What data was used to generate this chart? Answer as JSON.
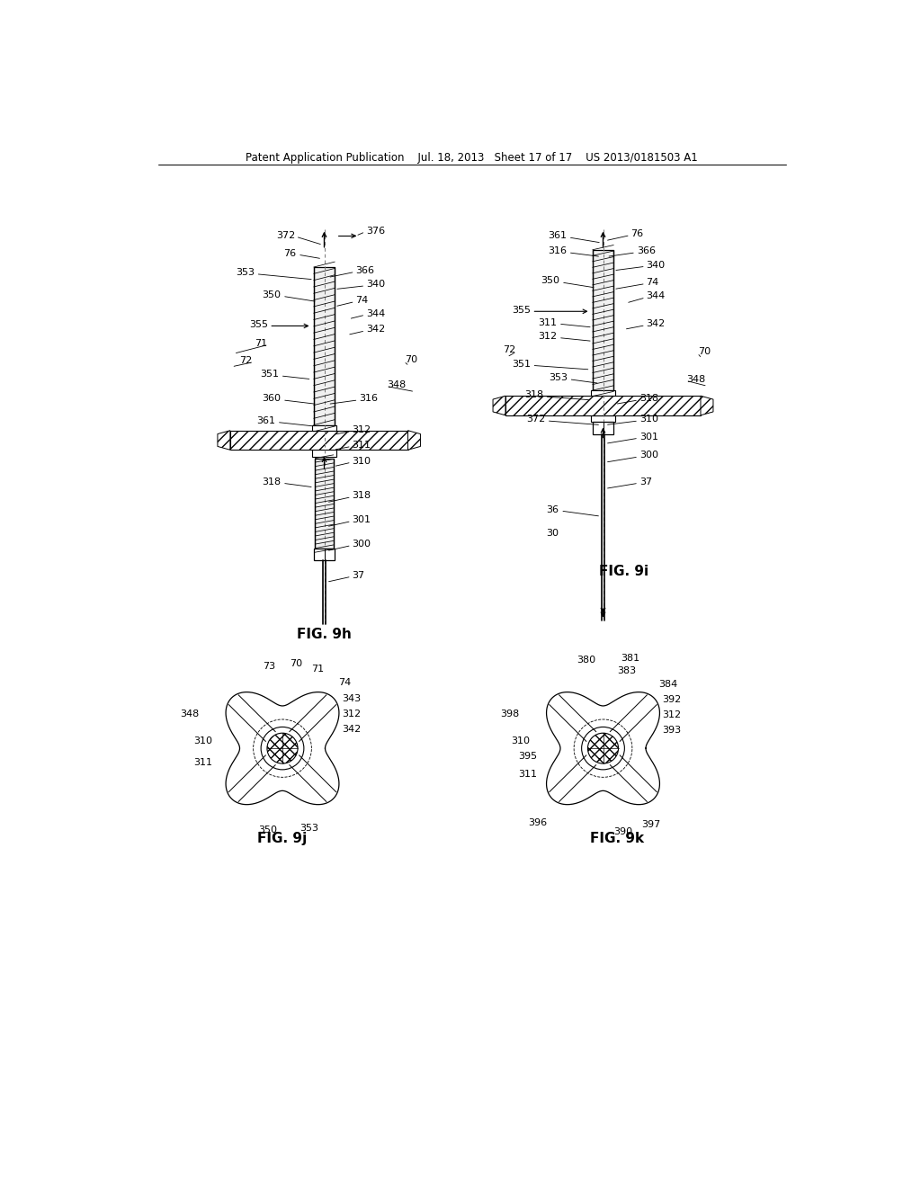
{
  "bg_color": "#ffffff",
  "lc": "#000000",
  "title": "Patent Application Publication    Jul. 18, 2013   Sheet 17 of 17    US 2013/0181503 A1",
  "fig9h": "FIG. 9h",
  "fig9i": "FIG. 9i",
  "fig9j": "FIG. 9j",
  "fig9k": "FIG. 9k",
  "fs_ref": 8.0,
  "fs_lbl": 11,
  "fs_title": 8.5
}
